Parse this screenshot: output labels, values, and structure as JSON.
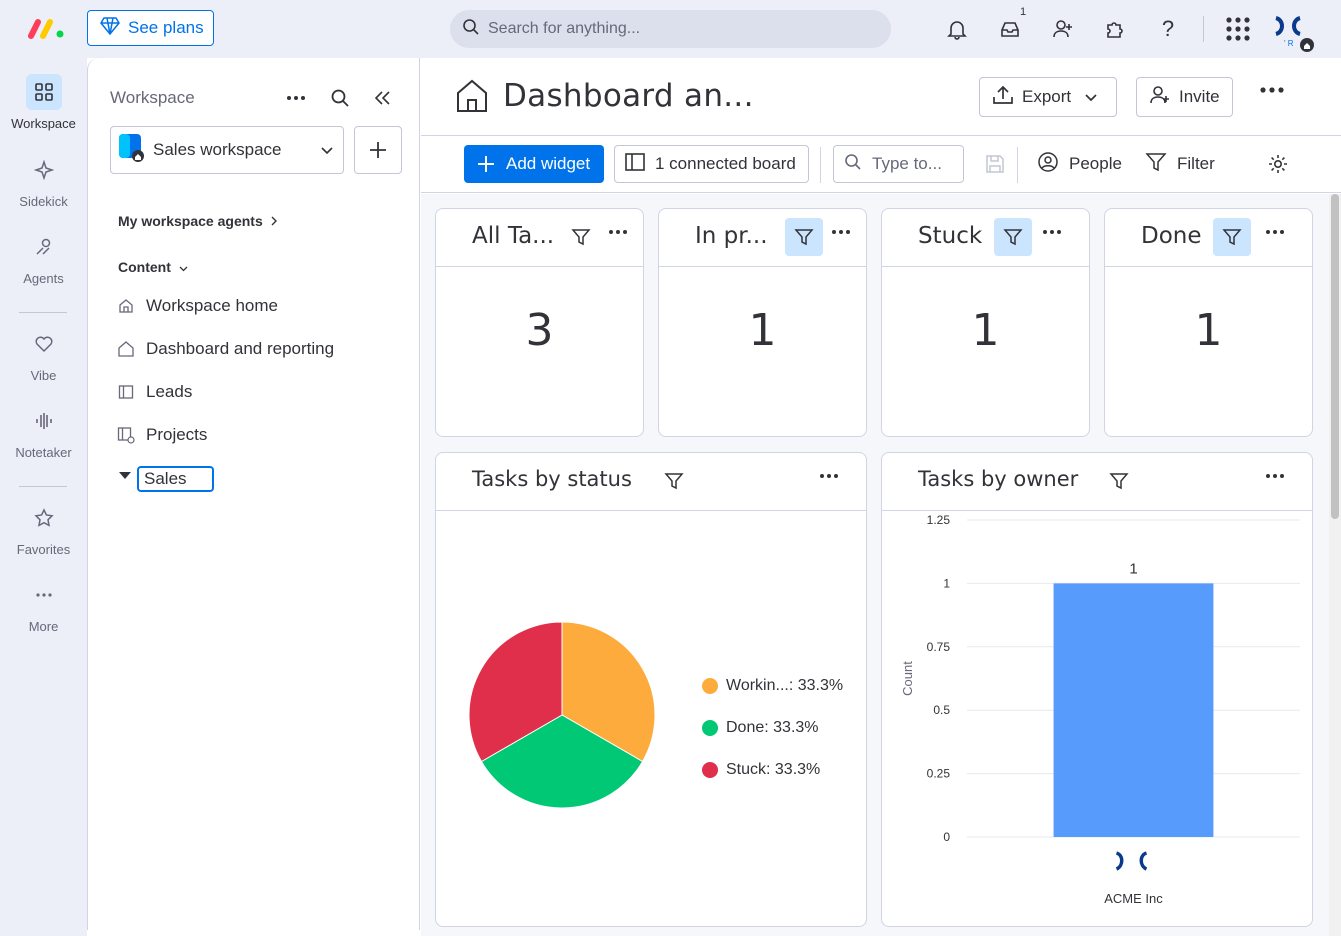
{
  "topbar": {
    "see_plans": "See plans",
    "search_placeholder": "Search for anything...",
    "inbox_badge": "1"
  },
  "rail": {
    "items": [
      {
        "label": "Workspace",
        "icon": "grid-icon"
      },
      {
        "label": "Sidekick",
        "icon": "sparkle-icon"
      },
      {
        "label": "Agents",
        "icon": "agents-icon"
      },
      {
        "label": "Vibe",
        "icon": "heart-icon"
      },
      {
        "label": "Notetaker",
        "icon": "waveform-icon"
      },
      {
        "label": "Favorites",
        "icon": "star-icon"
      },
      {
        "label": "More",
        "icon": "more-icon"
      }
    ]
  },
  "sidebar": {
    "title": "Workspace",
    "workspace_name": "Sales workspace",
    "agents_section": "My workspace agents",
    "content_section": "Content",
    "items": [
      {
        "label": "Workspace home",
        "icon": "workspace-home-icon"
      },
      {
        "label": "Dashboard and reporting",
        "icon": "home-icon"
      },
      {
        "label": "Leads",
        "icon": "board-icon"
      },
      {
        "label": "Projects",
        "icon": "project-board-icon"
      }
    ],
    "editing_folder": "Sales"
  },
  "header": {
    "title": "Dashboard an...",
    "export": "Export",
    "invite": "Invite"
  },
  "toolbar": {
    "add_widget": "Add widget",
    "connected_board": "1 connected board",
    "type_placeholder": "Type to...",
    "people": "People",
    "filter": "Filter"
  },
  "number_widgets": [
    {
      "title": "All Ta...",
      "value": "3",
      "filter_active": false
    },
    {
      "title": "In pr...",
      "value": "1",
      "filter_active": true
    },
    {
      "title": "Stuck",
      "value": "1",
      "filter_active": true
    },
    {
      "title": "Done",
      "value": "1",
      "filter_active": true
    }
  ],
  "status_widget": {
    "title": "Tasks by status",
    "legend": [
      "Workin...: 33.3%",
      "Done: 33.3%",
      "Stuck: 33.3%"
    ]
  },
  "owner_widget": {
    "title": "Tasks by owner",
    "ylabel": "Count",
    "category": "ACME Inc",
    "bar_label": "1",
    "yticks": [
      "1.25",
      "1",
      "0.75",
      "0.5",
      "0.25",
      "0"
    ]
  },
  "colors": {
    "primary": "#0073ea",
    "working": "#fdab3d",
    "done": "#00c875",
    "stuck": "#df2f4a",
    "bar": "#579bfc"
  },
  "chart_data": [
    {
      "type": "pie",
      "title": "Tasks by status",
      "categories": [
        "Workin...",
        "Done",
        "Stuck"
      ],
      "values": [
        33.3,
        33.3,
        33.3
      ],
      "colors": [
        "#fdab3d",
        "#00c875",
        "#df2f4a"
      ],
      "legend_position": "right"
    },
    {
      "type": "bar",
      "title": "Tasks by owner",
      "categories": [
        "ACME Inc"
      ],
      "values": [
        1
      ],
      "ylabel": "Count",
      "xlabel": "",
      "ylim": [
        0,
        1.25
      ],
      "yticks": [
        0,
        0.25,
        0.5,
        0.75,
        1,
        1.25
      ],
      "grid": true
    }
  ]
}
